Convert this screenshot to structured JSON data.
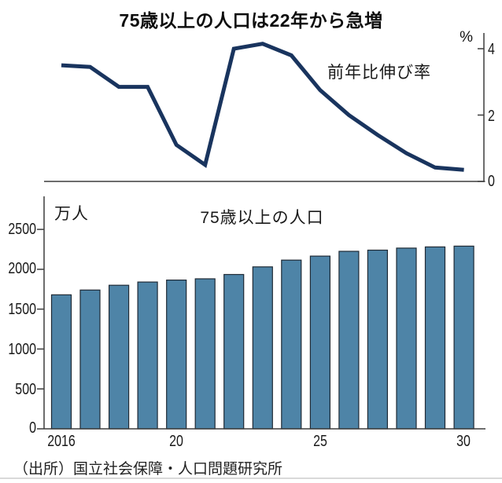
{
  "title": "75歳以上の人口は22年から急増",
  "source": "（出所）国立社会保障・人口問題研究所",
  "chart_data": [
    {
      "type": "line",
      "name": "yoy-growth-rate",
      "series_label": "前年比伸び率",
      "unit": "%",
      "x": [
        2016,
        2017,
        2018,
        2019,
        2020,
        2021,
        2022,
        2023,
        2024,
        2025,
        2026,
        2027,
        2028,
        2029,
        2030
      ],
      "values": [
        3.5,
        3.45,
        2.85,
        2.85,
        1.1,
        0.5,
        4.0,
        4.15,
        3.8,
        2.75,
        2.0,
        1.4,
        0.85,
        0.42,
        0.35
      ],
      "yticks": [
        4,
        2,
        0
      ],
      "ylim": [
        0,
        4.4
      ],
      "axis_side": "right",
      "grid": false,
      "color": "#19345e",
      "axis_color": "#3d3d3d"
    },
    {
      "type": "bar",
      "name": "population-75-plus",
      "title": "75歳以上の人口",
      "unit": "万人",
      "x": [
        2016,
        2017,
        2018,
        2019,
        2020,
        2021,
        2022,
        2023,
        2024,
        2025,
        2026,
        2027,
        2028,
        2029,
        2030
      ],
      "values": [
        1680,
        1740,
        1800,
        1840,
        1865,
        1880,
        1935,
        2030,
        2115,
        2165,
        2225,
        2240,
        2265,
        2280,
        2290
      ],
      "yticks": [
        2500,
        2000,
        1500,
        1000,
        500,
        0
      ],
      "xticks": [
        {
          "year": 2016,
          "label": "2016"
        },
        {
          "year": 2020,
          "label": "20"
        },
        {
          "year": 2025,
          "label": "25"
        },
        {
          "year": 2030,
          "label": "30"
        }
      ],
      "ylim": [
        0,
        2560
      ],
      "grid": false,
      "bar_color": "#4e84a7",
      "bar_edge": "#1f2a35",
      "axis_color": "#3d3d3d"
    }
  ]
}
